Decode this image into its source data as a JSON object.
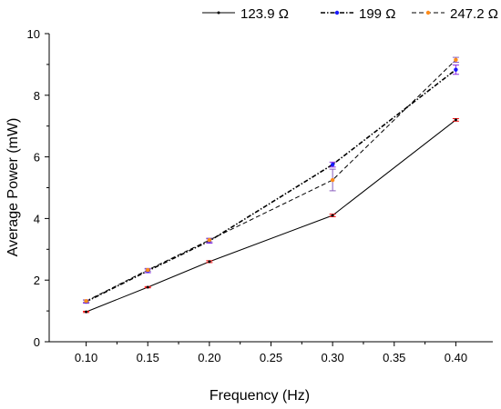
{
  "chart_data": {
    "type": "line",
    "xlabel": "Frequency (Hz)",
    "ylabel": "Average Power (mW)",
    "xlim": [
      0.07,
      0.43
    ],
    "ylim": [
      0,
      10
    ],
    "x_ticks": [
      "0.10",
      "0.15",
      "0.20",
      "0.25",
      "0.30",
      "0.35",
      "0.40"
    ],
    "x_tick_values": [
      0.1,
      0.15,
      0.2,
      0.25,
      0.3,
      0.35,
      0.4
    ],
    "y_ticks": [
      "0",
      "2",
      "4",
      "6",
      "8",
      "10"
    ],
    "y_tick_values": [
      0,
      2,
      4,
      6,
      8,
      10
    ],
    "grid": false,
    "legend_position": "top",
    "x": [
      0.1,
      0.15,
      0.2,
      0.3,
      0.4
    ],
    "series": [
      {
        "name": "123.9 Ω",
        "values": [
          0.97,
          1.77,
          2.6,
          4.1,
          7.2
        ],
        "errors": [
          0.02,
          0.02,
          0.03,
          0.04,
          0.04
        ],
        "color": "#000000",
        "marker_color": "#000000",
        "errorbar_color": "#ff0000",
        "dash": "none"
      },
      {
        "name": "199 Ω",
        "values": [
          1.3,
          2.3,
          3.27,
          5.75,
          8.83
        ],
        "errors": [
          0.05,
          0.06,
          0.07,
          0.08,
          0.15
        ],
        "color": "#000000",
        "marker_color": "#1a1aff",
        "errorbar_color": "#8a2be2",
        "dash": "5,2,1.5,2"
      },
      {
        "name": "247.2 Ω",
        "values": [
          1.32,
          2.33,
          3.3,
          5.25,
          9.15
        ],
        "errors": [
          0.04,
          0.05,
          0.06,
          0.35,
          0.08
        ],
        "color": "#000000",
        "marker_color": "#ff8c1a",
        "errorbar_color": "#8a5fbf",
        "dash": "5,3"
      }
    ]
  }
}
